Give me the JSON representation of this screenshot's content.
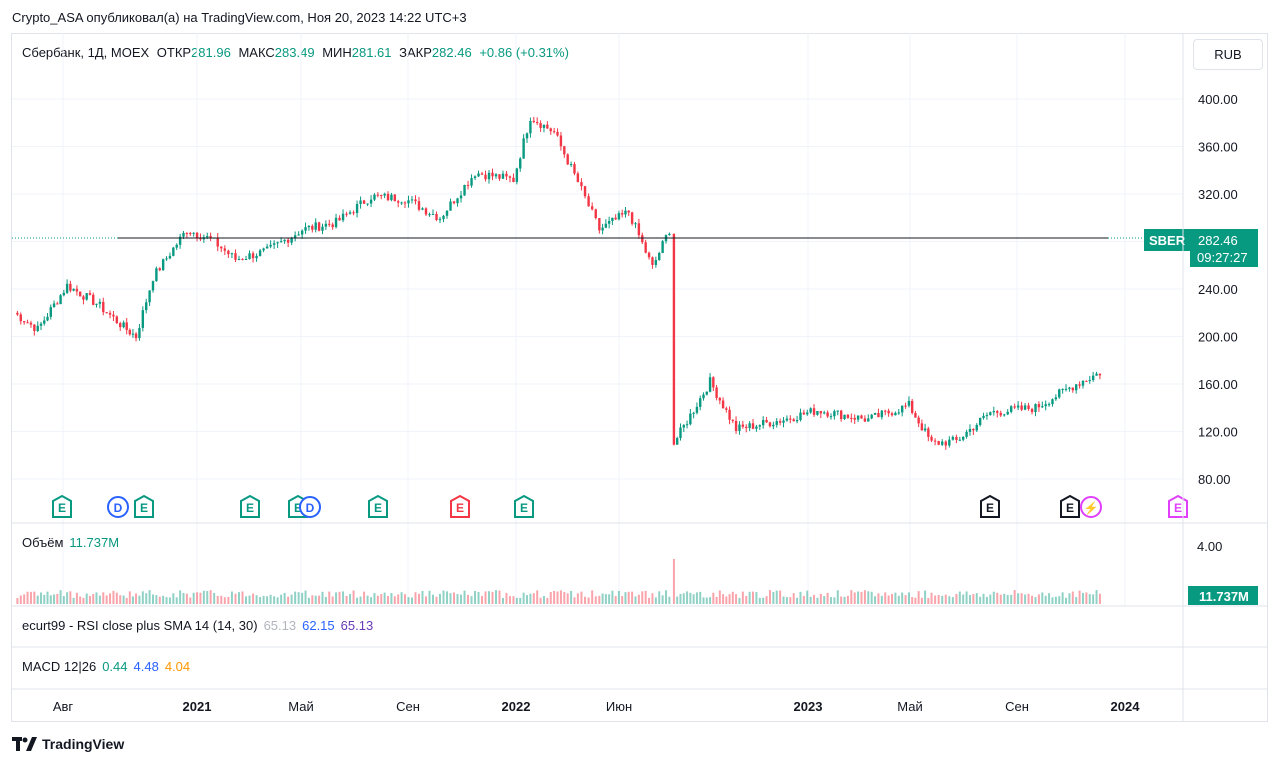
{
  "header": {
    "publisher_line": "Crypto_ASA опубликовал(а) на TradingView.com, Ноя 20, 2023 14:22 UTC+3"
  },
  "legend": {
    "symbol": "Сбербанк, 1Д, MOEX",
    "open_label": "ОТКР",
    "open_value": "281.96",
    "high_label": "МАКС",
    "high_value": "283.49",
    "low_label": "МИН",
    "low_value": "281.61",
    "close_label": "ЗАКР",
    "close_value": "282.46",
    "change": "+0.86 (+0.31%)"
  },
  "currency_button": "RUB",
  "price_tag": {
    "ticker": "SBER",
    "price": "282.46",
    "countdown": "09:27:27"
  },
  "volume_pane": {
    "label": "Объём",
    "value": "11.737M",
    "axis_tick": "4.00",
    "tag": "11.737M"
  },
  "rsi_pane": {
    "label": "ecurt99 - RSI close plus SMA 14 (14, 30)",
    "v1": "65.13",
    "v2": "62.15",
    "v3": "65.13"
  },
  "macd_pane": {
    "label": "MACD 12|26",
    "v1": "0.44",
    "v2": "4.48",
    "v3": "4.04"
  },
  "footer": {
    "brand": "TradingView"
  },
  "colors": {
    "up": "#089981",
    "down": "#f23645",
    "rsi": "#2962ff",
    "macd_signal": "#ff9800",
    "event_purple": "#e040fb",
    "dividend_blue": "#2962ff"
  },
  "chart_data": {
    "type": "candlestick",
    "y_ticks": [
      "400.00",
      "360.00",
      "320.00",
      "280.00",
      "240.00",
      "200.00",
      "160.00",
      "120.00",
      "80.00"
    ],
    "ylim": [
      70,
      415
    ],
    "x_ticks": [
      {
        "label": "Авг",
        "bold": false
      },
      {
        "label": "2021",
        "bold": true
      },
      {
        "label": "Май",
        "bold": false
      },
      {
        "label": "Сен",
        "bold": false
      },
      {
        "label": "2022",
        "bold": true
      },
      {
        "label": "Июн",
        "bold": false
      },
      {
        "label": "2023",
        "bold": true
      },
      {
        "label": "Май",
        "bold": false
      },
      {
        "label": "Сен",
        "bold": false
      },
      {
        "label": "2024",
        "bold": true
      }
    ],
    "date_range": [
      "2020-07-20",
      "2023-11-20"
    ],
    "horizontal_line": 283,
    "last_close": 282.46,
    "price_path": [
      [
        "2020-07-20",
        220
      ],
      [
        "2020-08-10",
        206
      ],
      [
        "2020-09-05",
        243
      ],
      [
        "2020-10-01",
        228
      ],
      [
        "2020-10-25",
        208
      ],
      [
        "2020-11-05",
        200
      ],
      [
        "2020-11-20",
        250
      ],
      [
        "2020-12-20",
        290
      ],
      [
        "2021-01-10",
        282
      ],
      [
        "2021-02-01",
        265
      ],
      [
        "2021-03-01",
        272
      ],
      [
        "2021-04-01",
        290
      ],
      [
        "2021-05-01",
        296
      ],
      [
        "2021-06-01",
        318
      ],
      [
        "2021-07-01",
        316
      ],
      [
        "2021-08-01",
        300
      ],
      [
        "2021-09-01",
        338
      ],
      [
        "2021-10-05",
        332
      ],
      [
        "2021-10-20",
        385
      ],
      [
        "2021-11-10",
        372
      ],
      [
        "2021-12-01",
        330
      ],
      [
        "2021-12-20",
        290
      ],
      [
        "2022-01-15",
        305
      ],
      [
        "2022-02-05",
        258
      ],
      [
        "2022-02-20",
        290
      ],
      [
        "2022-02-24",
        110
      ],
      [
        "2022-03-28",
        162
      ],
      [
        "2022-04-20",
        122
      ],
      [
        "2022-06-01",
        130
      ],
      [
        "2022-07-01",
        138
      ],
      [
        "2022-08-15",
        130
      ],
      [
        "2022-09-20",
        142
      ],
      [
        "2022-10-10",
        110
      ],
      [
        "2022-11-01",
        112
      ],
      [
        "2022-12-01",
        136
      ],
      [
        "2023-01-10",
        140
      ],
      [
        "2023-02-15",
        160
      ],
      [
        "2023-03-20",
        175
      ],
      [
        "2023-04-10",
        218
      ],
      [
        "2023-05-15",
        240
      ],
      [
        "2023-06-20",
        246
      ],
      [
        "2023-07-20",
        268
      ],
      [
        "2023-08-20",
        260
      ],
      [
        "2023-09-20",
        268
      ],
      [
        "2023-10-20",
        275
      ],
      [
        "2023-11-20",
        282.46
      ]
    ],
    "events": [
      {
        "type": "E",
        "color": "#089981",
        "date": "2020-08-01"
      },
      {
        "type": "D",
        "color": "#2962ff",
        "date": "2020-10-06"
      },
      {
        "type": "E",
        "color": "#089981",
        "date": "2020-10-20"
      },
      {
        "type": "E",
        "color": "#089981",
        "date": "2021-02-12"
      },
      {
        "type": "E",
        "color": "#089981",
        "date": "2021-04-28"
      },
      {
        "type": "D",
        "color": "#2962ff",
        "date": "2021-05-08"
      },
      {
        "type": "E",
        "color": "#089981",
        "date": "2021-07-26"
      },
      {
        "type": "E",
        "color": "#f23645",
        "date": "2021-10-29"
      },
      {
        "type": "E",
        "color": "#089981",
        "date": "2022-01-24"
      },
      {
        "type": "E",
        "color": "#131722",
        "date": "2023-07-21"
      },
      {
        "type": "E",
        "color": "#131722",
        "date": "2023-10-20"
      },
      {
        "type": "S",
        "color": "#e040fb",
        "date": "2023-10-29"
      },
      {
        "type": "E",
        "color": "#e040fb",
        "date": "2024-01-28"
      }
    ]
  }
}
